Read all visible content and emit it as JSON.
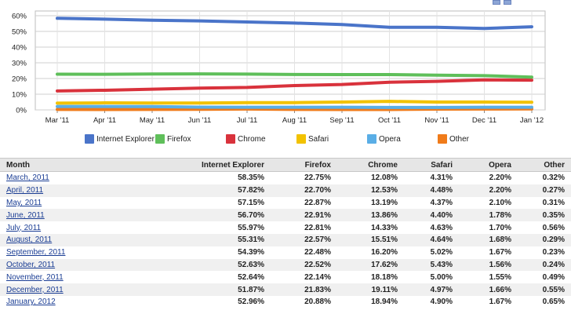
{
  "chart_data": {
    "type": "line",
    "categories": [
      "Mar '11",
      "Apr '11",
      "May '11",
      "Jun '11",
      "Jul '11",
      "Aug '11",
      "Sep '11",
      "Oct '11",
      "Nov '11",
      "Dec '11",
      "Jan '12"
    ],
    "ylim": [
      0,
      60
    ],
    "yticks": [
      "0%",
      "10%",
      "20%",
      "30%",
      "40%",
      "50%",
      "60%"
    ],
    "grid": true,
    "legend_position": "bottom",
    "series": [
      {
        "name": "Internet Explorer",
        "color": "#4a74c9",
        "values": [
          58.35,
          57.82,
          57.15,
          56.7,
          55.97,
          55.31,
          54.39,
          52.63,
          52.64,
          51.87,
          52.96
        ]
      },
      {
        "name": "Firefox",
        "color": "#5fbf5a",
        "values": [
          22.75,
          22.7,
          22.87,
          22.91,
          22.81,
          22.57,
          22.48,
          22.52,
          22.14,
          21.83,
          20.88
        ]
      },
      {
        "name": "Chrome",
        "color": "#d9323c",
        "values": [
          12.08,
          12.53,
          13.19,
          13.86,
          14.33,
          15.51,
          16.2,
          17.62,
          18.18,
          19.11,
          18.94
        ]
      },
      {
        "name": "Safari",
        "color": "#f2c200",
        "values": [
          4.31,
          4.48,
          4.37,
          4.4,
          4.63,
          4.64,
          5.02,
          5.43,
          5.0,
          4.97,
          4.9
        ]
      },
      {
        "name": "Opera",
        "color": "#5aaee6",
        "values": [
          2.2,
          2.2,
          2.1,
          1.78,
          1.7,
          1.68,
          1.67,
          1.56,
          1.55,
          1.66,
          1.67
        ]
      },
      {
        "name": "Other",
        "color": "#f07b1a",
        "values": [
          0.32,
          0.27,
          0.31,
          0.35,
          0.56,
          0.29,
          0.23,
          0.24,
          0.49,
          0.55,
          0.65
        ]
      }
    ]
  },
  "table": {
    "headers": {
      "month": "Month",
      "ie": "Internet Explorer",
      "firefox": "Firefox",
      "chrome": "Chrome",
      "safari": "Safari",
      "opera": "Opera",
      "other": "Other"
    },
    "rows": [
      {
        "month": "March, 2011",
        "ie": "58.35%",
        "firefox": "22.75%",
        "chrome": "12.08%",
        "safari": "4.31%",
        "opera": "2.20%",
        "other": "0.32%"
      },
      {
        "month": "April, 2011",
        "ie": "57.82%",
        "firefox": "22.70%",
        "chrome": "12.53%",
        "safari": "4.48%",
        "opera": "2.20%",
        "other": "0.27%"
      },
      {
        "month": "May, 2011",
        "ie": "57.15%",
        "firefox": "22.87%",
        "chrome": "13.19%",
        "safari": "4.37%",
        "opera": "2.10%",
        "other": "0.31%"
      },
      {
        "month": "June, 2011",
        "ie": "56.70%",
        "firefox": "22.91%",
        "chrome": "13.86%",
        "safari": "4.40%",
        "opera": "1.78%",
        "other": "0.35%"
      },
      {
        "month": "July, 2011",
        "ie": "55.97%",
        "firefox": "22.81%",
        "chrome": "14.33%",
        "safari": "4.63%",
        "opera": "1.70%",
        "other": "0.56%"
      },
      {
        "month": "August, 2011",
        "ie": "55.31%",
        "firefox": "22.57%",
        "chrome": "15.51%",
        "safari": "4.64%",
        "opera": "1.68%",
        "other": "0.29%"
      },
      {
        "month": "September, 2011",
        "ie": "54.39%",
        "firefox": "22.48%",
        "chrome": "16.20%",
        "safari": "5.02%",
        "opera": "1.67%",
        "other": "0.23%"
      },
      {
        "month": "October, 2011",
        "ie": "52.63%",
        "firefox": "22.52%",
        "chrome": "17.62%",
        "safari": "5.43%",
        "opera": "1.56%",
        "other": "0.24%"
      },
      {
        "month": "November, 2011",
        "ie": "52.64%",
        "firefox": "22.14%",
        "chrome": "18.18%",
        "safari": "5.00%",
        "opera": "1.55%",
        "other": "0.49%"
      },
      {
        "month": "December, 2011",
        "ie": "51.87%",
        "firefox": "21.83%",
        "chrome": "19.11%",
        "safari": "4.97%",
        "opera": "1.66%",
        "other": "0.55%"
      },
      {
        "month": "January, 2012",
        "ie": "52.96%",
        "firefox": "20.88%",
        "chrome": "18.94%",
        "safari": "4.90%",
        "opera": "1.67%",
        "other": "0.65%"
      }
    ]
  }
}
